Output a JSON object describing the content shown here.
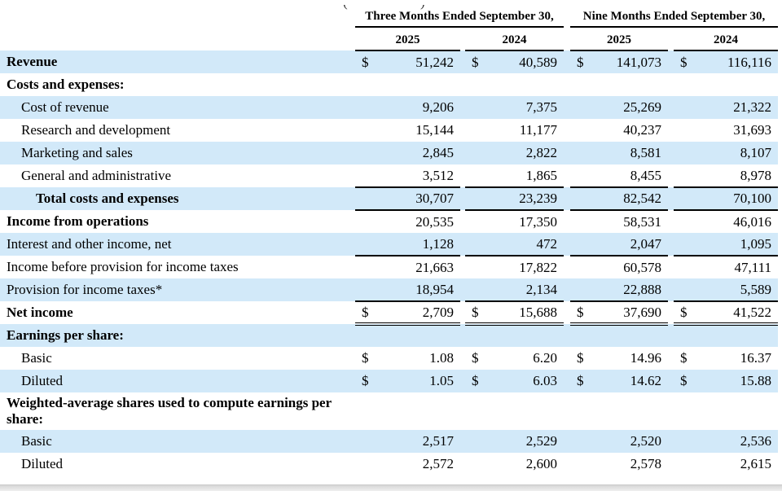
{
  "meta": {
    "document_type": "condensed-consolidated-statements-of-income",
    "stripe_color": "#d2e9f9",
    "line_color": "#000000",
    "bottom_strip_color": "#e3e3e3",
    "currency_symbol": "$"
  },
  "header": {
    "clipped_note_fragment": {
      "left": "(",
      "right": ")"
    },
    "groups": [
      {
        "label": "Three Months Ended September 30,",
        "years": [
          "2025",
          "2024"
        ]
      },
      {
        "label": "Nine Months Ended September 30,",
        "years": [
          "2025",
          "2024"
        ]
      }
    ]
  },
  "rows": [
    {
      "label": "Revenue",
      "bold": true,
      "indent": 0,
      "shaded": true,
      "currency": "$",
      "underline": "none",
      "values": [
        "51,242",
        "40,589",
        "141,073",
        "116,116"
      ]
    },
    {
      "label": "Costs and expenses:",
      "bold": true,
      "indent": 0,
      "shaded": false,
      "currency": "",
      "underline": "none",
      "values": null
    },
    {
      "label": "Cost of revenue",
      "bold": false,
      "indent": 1,
      "shaded": true,
      "currency": "",
      "underline": "none",
      "values": [
        "9,206",
        "7,375",
        "25,269",
        "21,322"
      ]
    },
    {
      "label": "Research and development",
      "bold": false,
      "indent": 1,
      "shaded": false,
      "currency": "",
      "underline": "none",
      "values": [
        "15,144",
        "11,177",
        "40,237",
        "31,693"
      ]
    },
    {
      "label": "Marketing and sales",
      "bold": false,
      "indent": 1,
      "shaded": true,
      "currency": "",
      "underline": "none",
      "values": [
        "2,845",
        "2,822",
        "8,581",
        "8,107"
      ]
    },
    {
      "label": "General and administrative",
      "bold": false,
      "indent": 1,
      "shaded": false,
      "currency": "",
      "underline": "single",
      "values": [
        "3,512",
        "1,865",
        "8,455",
        "8,978"
      ]
    },
    {
      "label": "Total costs and expenses",
      "bold": true,
      "indent": 2,
      "shaded": true,
      "currency": "",
      "underline": "single",
      "values": [
        "30,707",
        "23,239",
        "82,542",
        "70,100"
      ]
    },
    {
      "label": "Income from operations",
      "bold": true,
      "indent": 0,
      "shaded": false,
      "currency": "",
      "underline": "none",
      "values": [
        "20,535",
        "17,350",
        "58,531",
        "46,016"
      ]
    },
    {
      "label": "Interest and other income, net",
      "bold": false,
      "indent": 0,
      "shaded": true,
      "currency": "",
      "underline": "single",
      "values": [
        "1,128",
        "472",
        "2,047",
        "1,095"
      ]
    },
    {
      "label": "Income before provision for income taxes",
      "bold": false,
      "indent": 0,
      "shaded": false,
      "currency": "",
      "underline": "none",
      "values": [
        "21,663",
        "17,822",
        "60,578",
        "47,111"
      ]
    },
    {
      "label": "Provision for income taxes*",
      "bold": false,
      "indent": 0,
      "shaded": true,
      "currency": "",
      "underline": "single",
      "values": [
        "18,954",
        "2,134",
        "22,888",
        "5,589"
      ]
    },
    {
      "label": "Net income",
      "bold": true,
      "indent": 0,
      "shaded": false,
      "currency": "$",
      "underline": "double",
      "values": [
        "2,709",
        "15,688",
        "37,690",
        "41,522"
      ]
    },
    {
      "label": "Earnings per share:",
      "bold": true,
      "indent": 0,
      "shaded": true,
      "currency": "",
      "underline": "none",
      "values": null
    },
    {
      "label": "Basic",
      "bold": false,
      "indent": 1,
      "shaded": false,
      "currency": "$",
      "underline": "none",
      "values": [
        "1.08",
        "6.20",
        "14.96",
        "16.37"
      ]
    },
    {
      "label": "Diluted",
      "bold": false,
      "indent": 1,
      "shaded": true,
      "currency": "$",
      "underline": "none",
      "values": [
        "1.05",
        "6.03",
        "14.62",
        "15.88"
      ]
    },
    {
      "label": "Weighted-average shares used to compute earnings per share:",
      "bold": true,
      "indent": 0,
      "shaded": false,
      "currency": "",
      "underline": "none",
      "values": null,
      "tall": true
    },
    {
      "label": "Basic",
      "bold": false,
      "indent": 1,
      "shaded": true,
      "currency": "",
      "underline": "none",
      "values": [
        "2,517",
        "2,529",
        "2,520",
        "2,536"
      ]
    },
    {
      "label": "Diluted",
      "bold": false,
      "indent": 1,
      "shaded": false,
      "currency": "",
      "underline": "none",
      "values": [
        "2,572",
        "2,600",
        "2,578",
        "2,615"
      ]
    }
  ]
}
